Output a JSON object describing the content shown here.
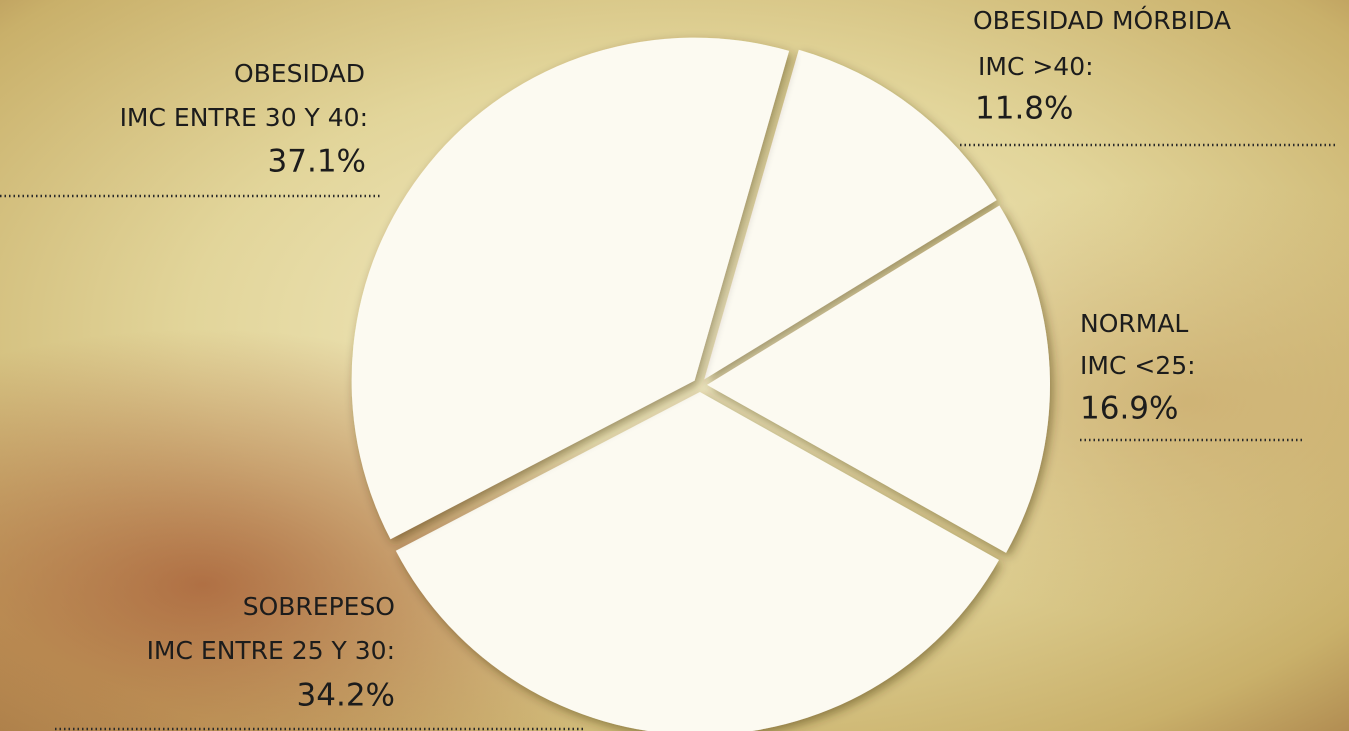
{
  "chart_data": {
    "type": "pie",
    "categories": [
      "OBESIDAD MÓRBIDA",
      "NORMAL",
      "SOBREPESO",
      "OBESIDAD"
    ],
    "subcategories": [
      "IMC >40:",
      "IMC <25:",
      "IMC ENTRE 25 Y 30:",
      "IMC ENTRE 30 Y 40:"
    ],
    "values": [
      11.8,
      16.9,
      34.2,
      37.1
    ],
    "value_labels": [
      "11.8%",
      "16.9%",
      "34.2%",
      "37.1%"
    ],
    "color": "#fcfaf1"
  }
}
